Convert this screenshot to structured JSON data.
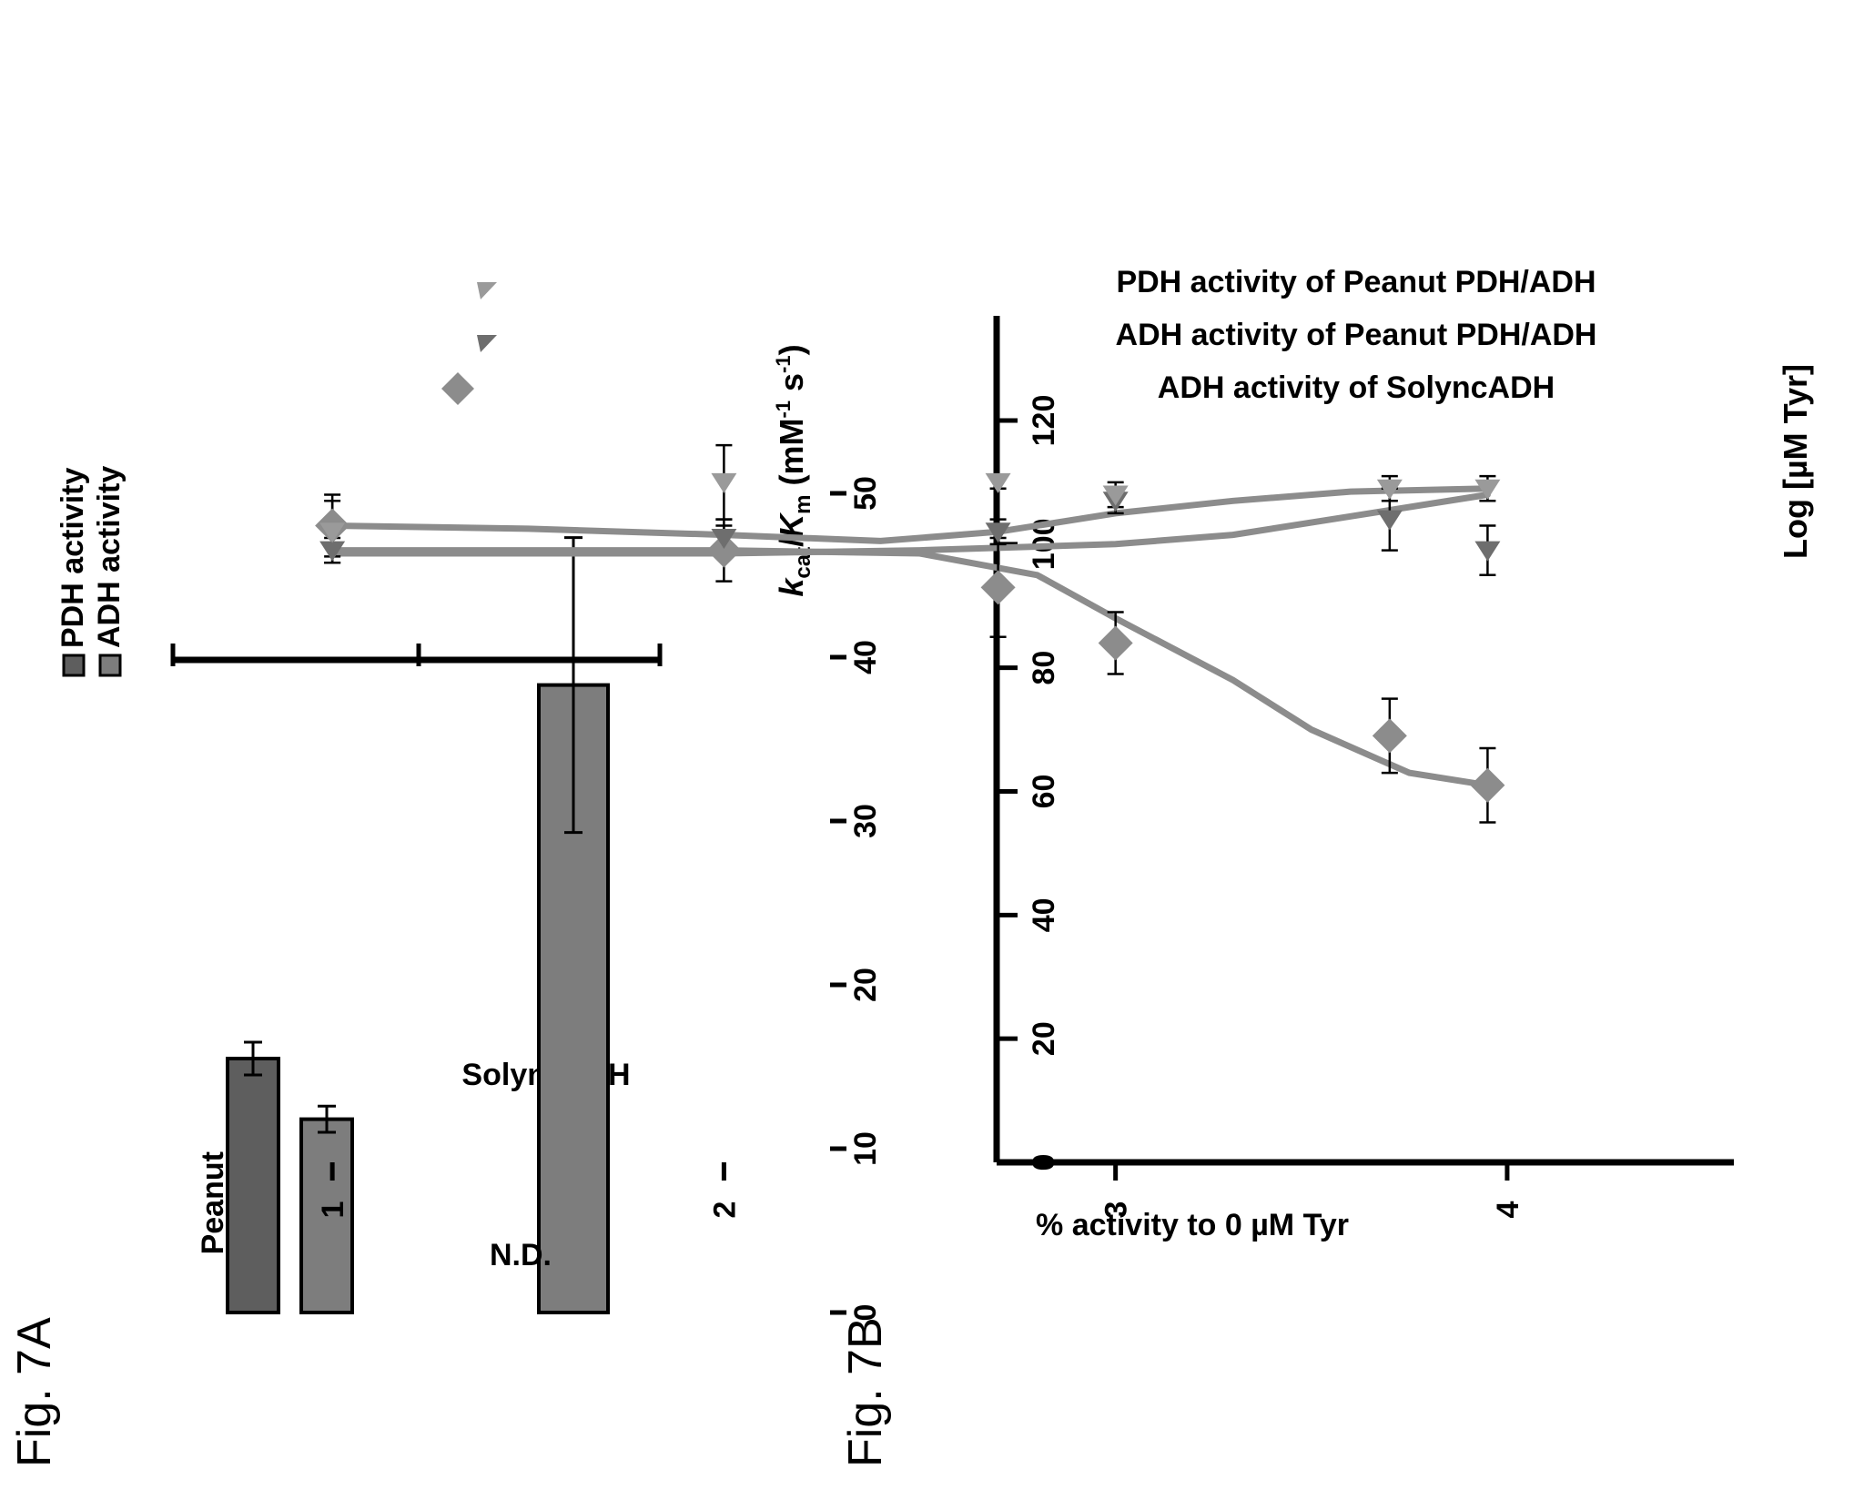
{
  "figure_labels": {
    "a": "Fig. 7A",
    "b": "Fig. 7B"
  },
  "colors": {
    "pdh": "#5e5e5e",
    "adh": "#7d7d7d",
    "line": "#8c8c8c",
    "marker_dark": "#6e6e6e",
    "marker_light": "#9a9a9a"
  },
  "chart_data": [
    {
      "type": "bar",
      "orientation": "horizontal",
      "categories": [
        "Peanut PDH/ADH",
        "SolyncADH"
      ],
      "series": [
        {
          "name": "PDH activity",
          "values": [
            15.5,
            null
          ],
          "errors": [
            1.0,
            null
          ],
          "color": "#5e5e5e"
        },
        {
          "name": "ADH activity",
          "values": [
            11.8,
            38.3
          ],
          "errors": [
            0.8,
            9.0
          ],
          "color": "#7d7d7d"
        }
      ],
      "annotations": [
        {
          "text": "N.D.",
          "category": "SolyncADH",
          "series": "PDH activity"
        }
      ],
      "xlim": [
        0,
        50
      ],
      "xticks": [
        0,
        10,
        20,
        30,
        40,
        50
      ],
      "xlabel": {
        "k": "k",
        "cat": "cat",
        "slash": "/",
        "K": "K",
        "m": "m",
        "unit_open": " (mM",
        "neg1a": "-1",
        "s": " s",
        "neg1b": "-1",
        "unit_close": ")"
      },
      "legend_position": "top-left",
      "grid": false
    },
    {
      "type": "scatter",
      "xlabel": "Log [µM Tyr]",
      "ylabel": "% activity to 0 µM Tyr",
      "xlim": [
        0.5,
        4.3
      ],
      "ylim": [
        0,
        120
      ],
      "xticks": [
        1,
        2,
        3,
        4
      ],
      "yticks": [
        0,
        20,
        40,
        60,
        80,
        100,
        120
      ],
      "legend_position": "bottom",
      "grid": false,
      "series": [
        {
          "name": "ADH activity of SolyncADH",
          "marker": "diamond",
          "x": [
            1,
            2,
            2.7,
            3,
            3.7,
            3.95
          ],
          "y": [
            103,
            99,
            93,
            84,
            69,
            61
          ],
          "errors": [
            5,
            5,
            8,
            5,
            6,
            6
          ],
          "fit": [
            [
              1,
              99
            ],
            [
              1.5,
              99
            ],
            [
              2,
              99
            ],
            [
              2.5,
              98.5
            ],
            [
              2.8,
              95
            ],
            [
              3,
              88
            ],
            [
              3.3,
              78
            ],
            [
              3.5,
              70
            ],
            [
              3.75,
              63
            ],
            [
              3.95,
              61
            ]
          ]
        },
        {
          "name": "ADH activity of Peanut PDH/ADH",
          "marker": "triangle",
          "x": [
            1,
            2,
            2.7,
            3,
            3.7,
            3.95
          ],
          "y": [
            99,
            101,
            102,
            107,
            104,
            99
          ],
          "errors": [
            2,
            2,
            2,
            2,
            5,
            4
          ],
          "fit": [
            [
              1,
              98.5
            ],
            [
              1.5,
              98.5
            ],
            [
              2,
              98.5
            ],
            [
              2.5,
              99
            ],
            [
              3,
              100
            ],
            [
              3.3,
              101.5
            ],
            [
              3.6,
              104.5
            ],
            [
              3.95,
              108
            ]
          ]
        },
        {
          "name": "PDH activity of Peanut PDH/ADH",
          "marker": "triangle",
          "x": [
            1,
            2,
            2.7,
            3,
            3.7,
            3.95
          ],
          "y": [
            102,
            110,
            110,
            108,
            109,
            109
          ],
          "errors": [
            5,
            6,
            1,
            2,
            2,
            2
          ],
          "fit": [
            [
              1,
              103
            ],
            [
              1.5,
              102.5
            ],
            [
              2,
              101.5
            ],
            [
              2.4,
              100.5
            ],
            [
              2.7,
              102
            ],
            [
              3,
              105
            ],
            [
              3.3,
              107
            ],
            [
              3.6,
              108.5
            ],
            [
              3.95,
              109
            ]
          ]
        }
      ]
    }
  ]
}
